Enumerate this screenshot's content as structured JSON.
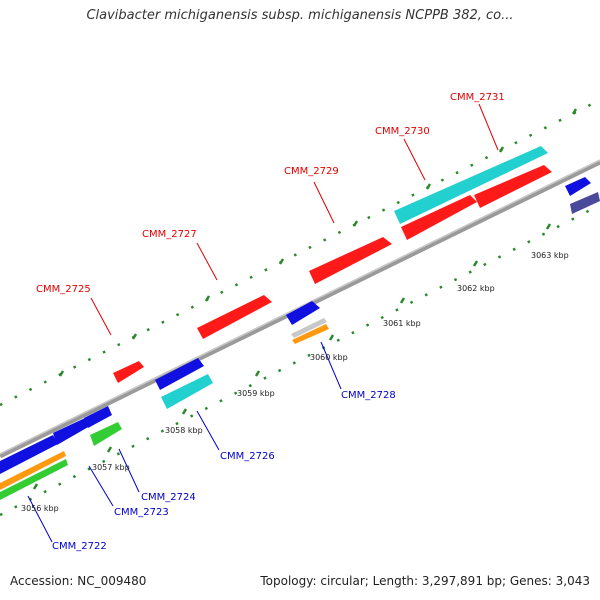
{
  "title": "Clavibacter michiganensis subsp. michiganensis NCPPB 382, co...",
  "footer": {
    "accession": "Accession: NC_009480",
    "stats": "Topology: circular; Length: 3,297,891 bp; Genes: 3,043"
  },
  "colors": {
    "red": "#ff1a1a",
    "blue": "#1010e0",
    "cyan": "#22d0d0",
    "green": "#33cc33",
    "orange": "#ff9a10",
    "gray": "#c8c8c8",
    "navy": "#4a4a9a",
    "label_red": "#e00000",
    "label_blue": "#0000cc",
    "backbone": "#8a8a8a",
    "tick": "#2a8a2a"
  },
  "kbp_labels": [
    "3056 kbp",
    "3057 kbp",
    "3058 kbp",
    "3059 kbp",
    "3060 kbp",
    "3061 kbp",
    "3062 kbp",
    "3063 kbp"
  ],
  "gene_labels": {
    "upper": [
      "CMM_2725",
      "CMM_2727",
      "CMM_2729",
      "CMM_2730",
      "CMM_2731"
    ],
    "lower": [
      "CMM_2728",
      "CMM_2726",
      "CMM_2724",
      "CMM_2723",
      "CMM_2722"
    ]
  }
}
